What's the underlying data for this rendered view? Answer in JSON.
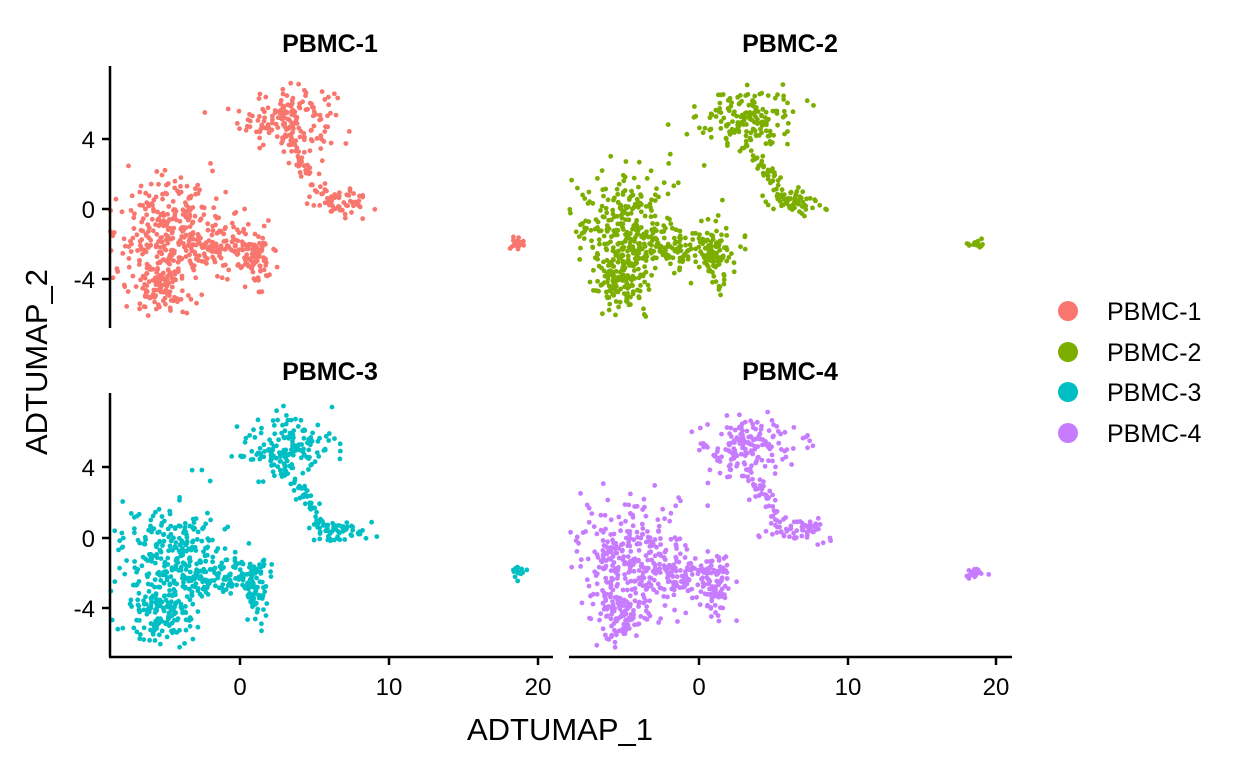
{
  "chart_data": {
    "type": "scatter",
    "facets": [
      "PBMC-1",
      "PBMC-2",
      "PBMC-3",
      "PBMC-4"
    ],
    "xlabel": "ADTUMAP_1",
    "ylabel": "ADTUMAP_2",
    "xticks": [
      "0",
      "10",
      "20"
    ],
    "yticks": [
      "4",
      "0",
      "-4"
    ],
    "xlim": [
      -8.5,
      21
    ],
    "ylim": [
      -6.5,
      8.2
    ],
    "legend": {
      "position": "right",
      "entries": [
        "PBMC-1",
        "PBMC-2",
        "PBMC-3",
        "PBMC-4"
      ]
    },
    "series": [
      {
        "name": "PBMC-1",
        "color": "#F8766D"
      },
      {
        "name": "PBMC-2",
        "color": "#7CAE00"
      },
      {
        "name": "PBMC-3",
        "color": "#00BFC4"
      },
      {
        "name": "PBMC-4",
        "color": "#C77CFF"
      }
    ],
    "clusters": [
      {
        "label": "upper",
        "center": [
          3.5,
          5.2
        ],
        "spread": [
          1.6,
          0.9
        ],
        "share": 0.18
      },
      {
        "label": "bridge",
        "center": [
          4.8,
          2.5
        ],
        "spread": [
          0.5,
          1.3
        ],
        "share": 0.05
      },
      {
        "label": "right-arm",
        "center": [
          7.0,
          0.4
        ],
        "spread": [
          1.0,
          0.35
        ],
        "share": 0.06
      },
      {
        "label": "left-main",
        "center": [
          -4.5,
          -1.0
        ],
        "spread": [
          1.8,
          1.5
        ],
        "share": 0.3
      },
      {
        "label": "lower-left",
        "center": [
          -5.0,
          -4.3
        ],
        "spread": [
          1.0,
          0.9
        ],
        "share": 0.14
      },
      {
        "label": "mid-band",
        "center": [
          -1.0,
          -2.2
        ],
        "spread": [
          1.5,
          0.6
        ],
        "share": 0.12
      },
      {
        "label": "right-lobe",
        "center": [
          1.4,
          -2.8
        ],
        "spread": [
          0.5,
          0.9
        ],
        "share": 0.09
      },
      {
        "label": "outlier",
        "center": [
          19.0,
          -2.0
        ],
        "spread": [
          0.3,
          0.2
        ],
        "share": 0.02
      }
    ],
    "points_per_facet": 900
  }
}
